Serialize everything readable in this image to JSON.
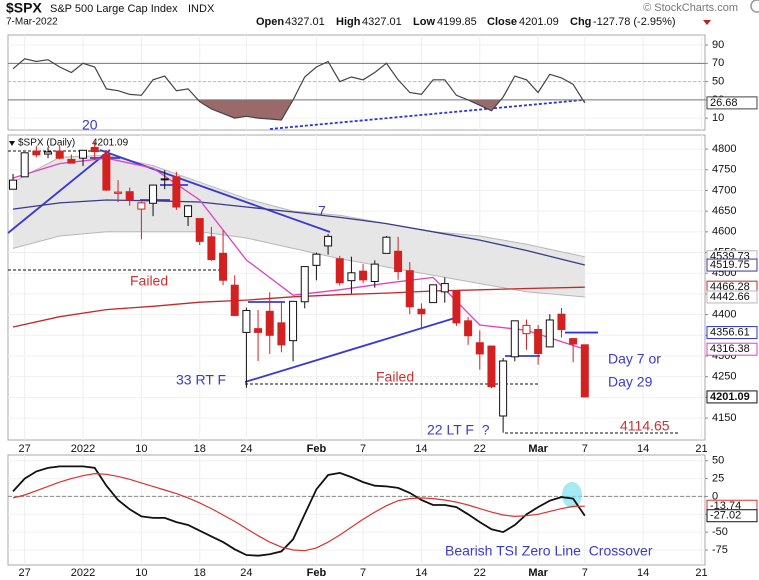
{
  "header": {
    "symbol": "$SPX",
    "name": "S&P 500 Large Cap Index",
    "exchange": "INDX",
    "date": "7-Mar-2022",
    "source": "© StockCharts.com",
    "open_label": "Open",
    "high_label": "High",
    "low_label": "Low",
    "close_label": "Close",
    "change_label": "Chg",
    "change": "-127.78 (-2.95%)"
  },
  "chart_data": [
    {
      "type": "candlestick",
      "legend_name": "$SPX (Daily)",
      "xlim": [
        -0.43,
        59.3
      ],
      "ylim": [
        4097,
        4834
      ],
      "xticks": [
        {
          "value": 1,
          "label": "27"
        },
        {
          "value": 6,
          "label": "2022"
        },
        {
          "value": 11,
          "label": "10"
        },
        {
          "value": 16,
          "label": "18"
        },
        {
          "value": 20,
          "label": "24"
        },
        {
          "value": 26,
          "label": "Feb"
        },
        {
          "value": 30,
          "label": "7"
        },
        {
          "value": 35,
          "label": "14"
        },
        {
          "value": 40,
          "label": "22"
        },
        {
          "value": 45,
          "label": "Mar"
        },
        {
          "value": 49,
          "label": "7"
        },
        {
          "value": 54,
          "label": "14"
        },
        {
          "value": 59,
          "label": "21"
        }
      ],
      "yticks": [
        4150,
        4200,
        4250,
        4300,
        4350,
        4400,
        4450,
        4500,
        4550,
        4600,
        4650,
        4700,
        4750,
        4800
      ],
      "grid": true,
      "open": [
        4703,
        4733,
        4795,
        4788,
        4795,
        4775,
        4778,
        4804,
        4787,
        4693,
        4697,
        4655,
        4669,
        4728,
        4733,
        4637,
        4632,
        4588,
        4548,
        4471,
        4357,
        4366,
        4408,
        4380,
        4337,
        4431,
        4519,
        4566,
        4535,
        4482,
        4505,
        4480,
        4548,
        4553,
        4506,
        4413,
        4429,
        4455,
        4456,
        4385,
        4332,
        4324,
        4155,
        4298,
        4354,
        4364,
        4322,
        4401,
        4342,
        4327.01
      ],
      "high": [
        4740,
        4791,
        4807,
        4804,
        4808,
        4787,
        4797,
        4818,
        4798,
        4725,
        4707,
        4673,
        4714,
        4749,
        4745,
        4665,
        4632,
        4612,
        4603,
        4495,
        4417,
        4411,
        4454,
        4428,
        4432,
        4516,
        4550,
        4595,
        4542,
        4540,
        4522,
        4531,
        4590,
        4588,
        4527,
        4427,
        4472,
        4490,
        4456,
        4394,
        4362,
        4325,
        4295,
        4385,
        4388,
        4375,
        4401,
        4416,
        4343,
        4327.01
      ],
      "low": [
        4703,
        4733,
        4780,
        4778,
        4775,
        4766,
        4759,
        4774,
        4699,
        4672,
        4663,
        4582,
        4638,
        4703,
        4653,
        4614,
        4568,
        4530,
        4471,
        4396,
        4223,
        4288,
        4305,
        4309,
        4287,
        4415,
        4483,
        4545,
        4470,
        4451,
        4476,
        4465,
        4548,
        4484,
        4401,
        4364,
        4429,
        4429,
        4373,
        4327,
        4267,
        4222,
        4114.65,
        4287,
        4315,
        4279,
        4322,
        4345,
        4285,
        4199.85
      ],
      "close": [
        4725,
        4791,
        4786,
        4793,
        4778,
        4766,
        4797,
        4794,
        4701,
        4696,
        4677,
        4670,
        4713,
        4726,
        4660,
        4663,
        4577,
        4533,
        4483,
        4398,
        4410,
        4357,
        4350,
        4327,
        4432,
        4516,
        4546,
        4589,
        4477,
        4501,
        4484,
        4522,
        4587,
        4504,
        4419,
        4402,
        4472,
        4475,
        4380,
        4349,
        4305,
        4226,
        4288,
        4385,
        4374,
        4306,
        4387,
        4364,
        4328.87,
        4201.09
      ],
      "up_color": "#111111",
      "down_color": "#d32020",
      "band": {
        "color": "#e6e6e6",
        "line_color": "#b8b8b8",
        "x": [
          0,
          4,
          8,
          12,
          16,
          20,
          24,
          28,
          32,
          36,
          40,
          44,
          49
        ],
        "upper": [
          4720,
          4780,
          4785,
          4760,
          4720,
          4680,
          4650,
          4640,
          4620,
          4600,
          4590,
          4570,
          4539.73
        ],
        "lower": [
          4560,
          4590,
          4600,
          4600,
          4600,
          4585,
          4560,
          4535,
          4515,
          4495,
          4475,
          4455,
          4442.66
        ]
      },
      "overlays": [
        {
          "color": "#3a3a8c",
          "x": [
            0,
            4,
            8,
            12,
            16,
            20,
            24,
            28,
            32,
            36,
            40,
            44,
            49
          ],
          "values": [
            4655,
            4670,
            4677,
            4675,
            4672,
            4660,
            4648,
            4635,
            4620,
            4600,
            4580,
            4555,
            4519.75
          ]
        },
        {
          "color": "#c62828",
          "x": [
            0,
            4,
            8,
            12,
            16,
            20,
            24,
            28,
            32,
            36,
            40,
            44,
            49
          ],
          "values": [
            4370,
            4395,
            4412,
            4420,
            4430,
            4435,
            4443,
            4448,
            4452,
            4457,
            4460,
            4463,
            4466.28
          ]
        },
        {
          "color": "#e040c8",
          "x": [
            0,
            4,
            8,
            12,
            16,
            20,
            24,
            28,
            32,
            36,
            40,
            44,
            49
          ],
          "values": [
            4730,
            4765,
            4778,
            4754,
            4677,
            4532,
            4447,
            4460,
            4476,
            4490,
            4375,
            4362,
            4316.38
          ]
        }
      ],
      "levels": [
        {
          "value": 4356.61,
          "color": "#2a36d8"
        }
      ],
      "annotations": [
        {
          "text": "20",
          "color": "#3a3ad0"
        },
        {
          "text": "7",
          "color": "#3a3ad0"
        },
        {
          "text": "Failed",
          "color": "#d03030"
        },
        {
          "text": "33 RT F",
          "color": "#3a3ad0"
        },
        {
          "text": "Failed",
          "color": "#d03030"
        },
        {
          "text": "22 LT F  ?",
          "color": "#3a3ad0"
        },
        {
          "text": "Day 7 or",
          "color": "#3a3ad0"
        },
        {
          "text": "Day 29",
          "color": "#3a3ad0"
        },
        {
          "text": "4114.65",
          "color": "#d03030"
        }
      ]
    },
    {
      "type": "line",
      "ylim": [
        -3,
        101
      ],
      "yticks": [
        10,
        30,
        50,
        70,
        90
      ],
      "color": "#444444",
      "shade_below": 30,
      "shade_color": "#9a6a6a",
      "values": [
        64,
        75,
        72,
        74,
        66,
        60,
        70,
        66,
        42,
        40,
        36,
        35,
        52,
        56,
        40,
        42,
        28,
        20,
        15,
        10,
        12,
        10,
        9,
        8,
        30,
        55,
        66,
        72,
        50,
        55,
        52,
        60,
        70,
        52,
        38,
        36,
        52,
        52,
        35,
        30,
        24,
        18,
        33,
        56,
        52,
        38,
        58,
        54,
        47,
        26.68
      ]
    },
    {
      "type": "line",
      "ylim": [
        -96,
        58
      ],
      "yticks": [
        -75,
        -50,
        -25,
        0,
        25,
        50
      ],
      "series": [
        {
          "color": "#111111",
          "values": [
            7,
            25,
            35,
            40,
            42,
            42,
            42,
            40,
            15,
            -5,
            -18,
            -28,
            -30,
            -30,
            -36,
            -40,
            -48,
            -56,
            -64,
            -74,
            -82,
            -83,
            -81,
            -77,
            -60,
            -25,
            10,
            30,
            33,
            27,
            20,
            15,
            14,
            12,
            5,
            -5,
            -12,
            -12,
            -15,
            -25,
            -36,
            -46,
            -50,
            -40,
            -25,
            -15,
            -6,
            -1,
            -3,
            -27.02
          ]
        },
        {
          "color": "#e03030",
          "values": [
            -2,
            2,
            8,
            14,
            20,
            25,
            29,
            32,
            31,
            28,
            24,
            19,
            14,
            9,
            4,
            -2,
            -9,
            -17,
            -26,
            -35,
            -45,
            -55,
            -64,
            -71,
            -75,
            -76,
            -72,
            -64,
            -54,
            -43,
            -32,
            -22,
            -13,
            -6,
            -3,
            -2,
            -3,
            -5,
            -8,
            -12,
            -17,
            -22,
            -26,
            -28,
            -27,
            -25,
            -21,
            -17,
            -14,
            -13.74
          ]
        }
      ],
      "annotations": [
        {
          "text": "Bearish TSI Zero Line  Crossover",
          "color": "#3a3ad0"
        }
      ]
    }
  ]
}
